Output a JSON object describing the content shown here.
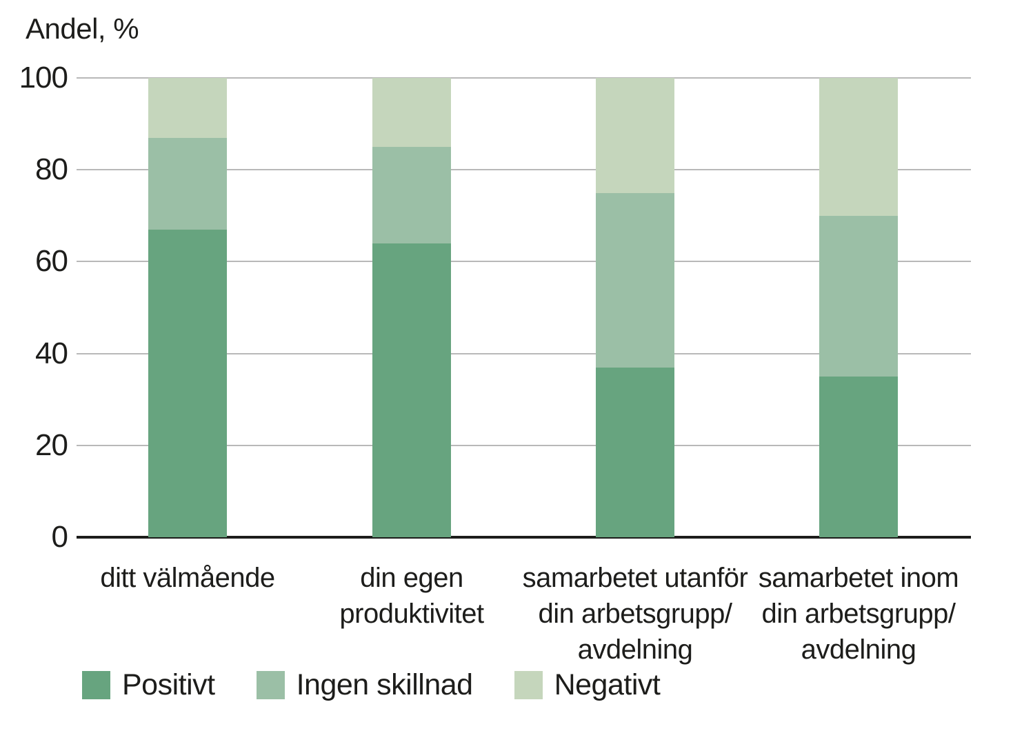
{
  "chart_data": {
    "type": "bar",
    "stacked": true,
    "title": "Andel, %",
    "ylabel": "Andel, %",
    "xlabel": "",
    "ylim": [
      0,
      100
    ],
    "yticks": [
      0,
      20,
      40,
      60,
      80,
      100
    ],
    "grid": "horizontal",
    "legend_position": "bottom",
    "categories": [
      [
        "ditt välmående"
      ],
      [
        "din egen",
        "produktivitet"
      ],
      [
        "samarbetet utanför",
        "din arbetsgrupp/",
        "avdelning"
      ],
      [
        "samarbetet inom",
        "din arbetsgrupp/",
        "avdelning"
      ]
    ],
    "series": [
      {
        "name": "Positivt",
        "color": "#67a47f",
        "values": [
          67,
          64,
          37,
          35
        ]
      },
      {
        "name": "Ingen skillnad",
        "color": "#9bbfa6",
        "values": [
          20,
          21,
          38,
          35
        ]
      },
      {
        "name": "Negativt",
        "color": "#c5d6bc",
        "values": [
          13,
          15,
          25,
          30
        ]
      }
    ]
  },
  "colors": {
    "background": "#ffffff",
    "text": "#1d1d1b",
    "axis": "#1d1d1b",
    "gridline": "#b8b8b8"
  }
}
